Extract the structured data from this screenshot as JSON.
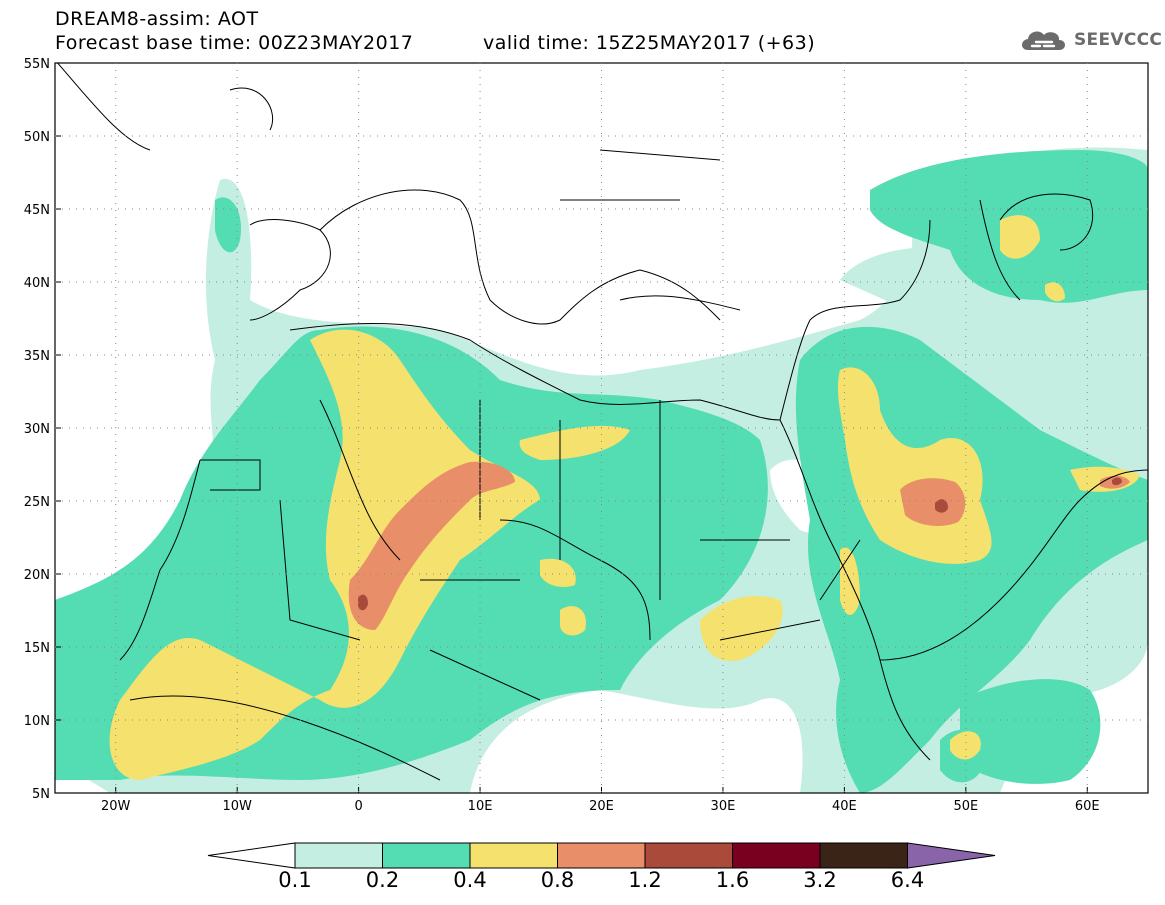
{
  "header": {
    "title": "DREAM8-assim: AOT",
    "base_time": "Forecast base time: 00Z23MAY2017",
    "valid_time": "valid time: 15Z25MAY2017 (+63)"
  },
  "logo": {
    "text": "SEEVCCC",
    "icon": "cloud-icon"
  },
  "axes": {
    "lat_labels": [
      "55N",
      "50N",
      "45N",
      "40N",
      "35N",
      "30N",
      "25N",
      "20N",
      "15N",
      "10N",
      "5N"
    ],
    "lat_values": [
      55,
      50,
      45,
      40,
      35,
      30,
      25,
      20,
      15,
      10,
      5
    ],
    "lon_labels": [
      "20W",
      "10W",
      "0",
      "10E",
      "20E",
      "30E",
      "40E",
      "50E",
      "60E"
    ],
    "lon_values": [
      -20,
      -10,
      0,
      10,
      20,
      30,
      40,
      50,
      60
    ],
    "lon_range": [
      -25,
      65
    ],
    "lat_range": [
      5,
      55
    ]
  },
  "colorbar": {
    "labels": [
      "0.1",
      "0.2",
      "0.4",
      "0.8",
      "1.2",
      "1.6",
      "3.2",
      "6.4"
    ],
    "colors": [
      "#ffffff",
      "#c4eee2",
      "#54dcb2",
      "#f5e16e",
      "#e88e68",
      "#aa4a3a",
      "#7a0020",
      "#3a2418",
      "#8a64a8"
    ]
  },
  "colors": {
    "c1": "#c4eee2",
    "c2": "#54dcb2",
    "c3": "#f5e16e",
    "c4": "#e88e68",
    "c5": "#aa4a3a"
  }
}
